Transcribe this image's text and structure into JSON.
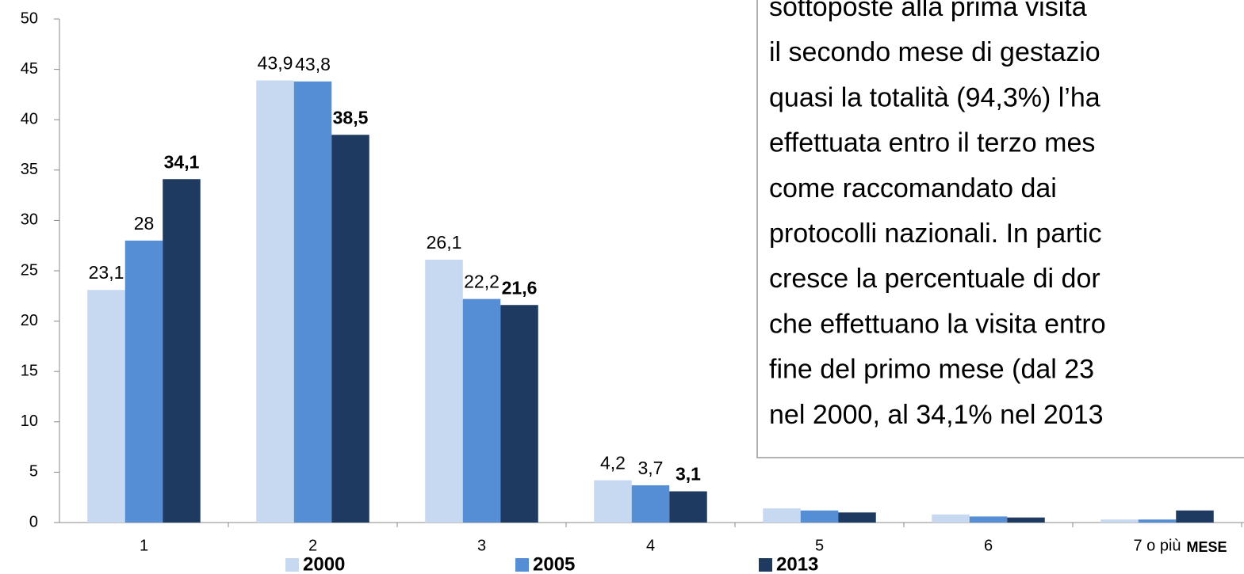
{
  "chart_data": {
    "type": "bar",
    "categories": [
      "1",
      "2",
      "3",
      "4",
      "5",
      "6",
      "7 o più"
    ],
    "series": [
      {
        "name": "2000",
        "color": "#c6d9f1",
        "values": [
          23.1,
          43.9,
          26.1,
          4.2,
          1.4,
          0.8,
          0.3
        ],
        "value_labels": [
          "23,1",
          "43,9",
          "26,1",
          "4,2",
          null,
          null,
          null
        ]
      },
      {
        "name": "2005",
        "color": "#558ed5",
        "values": [
          28,
          43.8,
          22.2,
          3.7,
          1.2,
          0.6,
          0.3
        ],
        "value_labels": [
          "28",
          "43,8",
          "22,2",
          "3,7",
          null,
          null,
          null
        ]
      },
      {
        "name": "2013",
        "color": "#1f3a60",
        "values": [
          34.1,
          38.5,
          21.6,
          3.1,
          1.0,
          0.5,
          1.2
        ],
        "value_labels": [
          "34,1",
          "38,5",
          "21,6",
          "3,1",
          null,
          null,
          null
        ]
      }
    ],
    "ylim": [
      0,
      50
    ],
    "yticks": [
      0,
      5,
      10,
      15,
      20,
      25,
      30,
      35,
      40,
      45,
      50
    ],
    "xlabel": "MESE",
    "legend": "bottom",
    "annotation": [
      "sottoposte alla prima visita",
      "il secondo mese di gestazio",
      "quasi la totalità (94,3%) l’ha",
      "effettuata entro il terzo mes",
      "come raccomandato dai",
      "protocolli nazionali. In partic",
      "cresce la percentuale di dor",
      "che effettuano la visita entro",
      "fine del primo mese (dal 23",
      "nel 2000, al 34,1% nel 2013"
    ]
  }
}
